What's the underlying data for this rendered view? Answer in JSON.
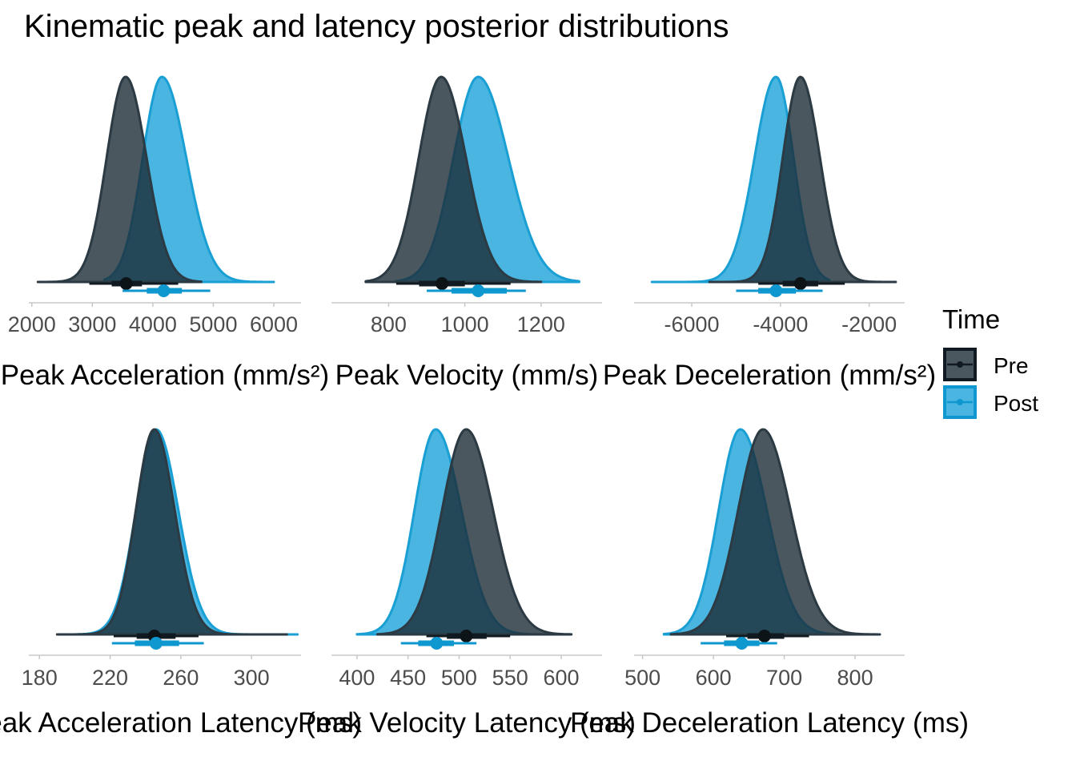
{
  "title": "Kinematic peak and latency posterior distributions",
  "legend": {
    "title": "Time",
    "entries": [
      {
        "label": "Pre",
        "fill": "#1d2d36",
        "stroke": "#111a20"
      },
      {
        "label": "Post",
        "fill": "#1ba3d8",
        "stroke": "#0f97cf"
      }
    ]
  },
  "chart_data": [
    {
      "type": "area",
      "xlabel": "Peak Acceleration (mm/s²)",
      "xlim": [
        1950,
        6450
      ],
      "xticks": [
        2000,
        3000,
        4000,
        5000,
        6000
      ],
      "series": [
        {
          "name": "Pre",
          "mode": 3550,
          "sd": 330,
          "skew": 0.05,
          "density_extent": [
            2100,
            4800
          ],
          "interval_point": 3560,
          "interval_66": [
            3320,
            3820
          ],
          "interval_95": [
            2950,
            4420
          ]
        },
        {
          "name": "Post",
          "mode": 4150,
          "sd": 360,
          "skew": 0.12,
          "density_extent": [
            3200,
            6000
          ],
          "interval_point": 4180,
          "interval_66": [
            3900,
            4480
          ],
          "interval_95": [
            3500,
            4950
          ]
        }
      ]
    },
    {
      "type": "area",
      "xlabel": "Peak Velocity (mm/s)",
      "xlim": [
        650,
        1360
      ],
      "xticks": [
        800,
        1000,
        1200
      ],
      "series": [
        {
          "name": "Pre",
          "mode": 938,
          "sd": 62,
          "skew": 0.05,
          "density_extent": [
            740,
            1200
          ],
          "interval_point": 940,
          "interval_66": [
            880,
            1000
          ],
          "interval_95": [
            820,
            1120
          ]
        },
        {
          "name": "Post",
          "mode": 1035,
          "sd": 72,
          "skew": 0.1,
          "density_extent": [
            820,
            1300
          ],
          "interval_point": 1035,
          "interval_66": [
            965,
            1110
          ],
          "interval_95": [
            900,
            1160
          ]
        }
      ]
    },
    {
      "type": "area",
      "xlabel": "Peak Deceleration (mm/s²)",
      "xlim": [
        -7300,
        -1200
      ],
      "xticks": [
        -6000,
        -4000,
        -2000
      ],
      "series": [
        {
          "name": "Pre",
          "mode": -3550,
          "sd": 420,
          "skew": 0.05,
          "density_extent": [
            -5600,
            -1400
          ],
          "interval_point": -3550,
          "interval_66": [
            -3950,
            -3150
          ],
          "interval_95": [
            -4500,
            -2550
          ]
        },
        {
          "name": "Post",
          "mode": -4100,
          "sd": 440,
          "skew": -0.1,
          "density_extent": [
            -6900,
            -2900
          ],
          "interval_point": -4100,
          "interval_66": [
            -4500,
            -3650
          ],
          "interval_95": [
            -5000,
            -3050
          ]
        }
      ]
    },
    {
      "type": "area",
      "xlabel": "Peak Acceleration Latency (ms)",
      "xlim": [
        174,
        328
      ],
      "xticks": [
        180,
        220,
        260,
        300
      ],
      "series": [
        {
          "name": "Pre",
          "mode": 245,
          "sd": 11,
          "skew": 0.05,
          "density_extent": [
            190,
            320
          ],
          "interval_point": 245,
          "interval_66": [
            235,
            257
          ],
          "interval_95": [
            222,
            270
          ]
        },
        {
          "name": "Post",
          "mode": 246,
          "sd": 12,
          "skew": 0.05,
          "density_extent": [
            200,
            326
          ],
          "interval_point": 246,
          "interval_66": [
            234,
            259
          ],
          "interval_95": [
            221,
            273
          ]
        }
      ]
    },
    {
      "type": "area",
      "xlabel": "Peak Velocity Latency (ms)",
      "xlim": [
        375,
        640
      ],
      "xticks": [
        400,
        450,
        500,
        550,
        600
      ],
      "series": [
        {
          "name": "Pre",
          "mode": 507,
          "sd": 25,
          "skew": 0.05,
          "density_extent": [
            420,
            610
          ],
          "interval_point": 507,
          "interval_66": [
            488,
            527
          ],
          "interval_95": [
            468,
            550
          ]
        },
        {
          "name": "Post",
          "mode": 477,
          "sd": 23,
          "skew": 0.1,
          "density_extent": [
            400,
            580
          ],
          "interval_point": 478,
          "interval_66": [
            460,
            495
          ],
          "interval_95": [
            443,
            517
          ]
        }
      ]
    },
    {
      "type": "area",
      "xlabel": "Peak Deceleration Latency (ms)",
      "xlim": [
        488,
        870
      ],
      "xticks": [
        500,
        600,
        700,
        800
      ],
      "series": [
        {
          "name": "Pre",
          "mode": 670,
          "sd": 37,
          "skew": 0.05,
          "density_extent": [
            540,
            835
          ],
          "interval_point": 672,
          "interval_66": [
            648,
            700
          ],
          "interval_95": [
            618,
            735
          ]
        },
        {
          "name": "Post",
          "mode": 638,
          "sd": 34,
          "skew": 0.1,
          "density_extent": [
            530,
            780
          ],
          "interval_point": 640,
          "interval_66": [
            615,
            665
          ],
          "interval_95": [
            582,
            690
          ]
        }
      ]
    }
  ]
}
